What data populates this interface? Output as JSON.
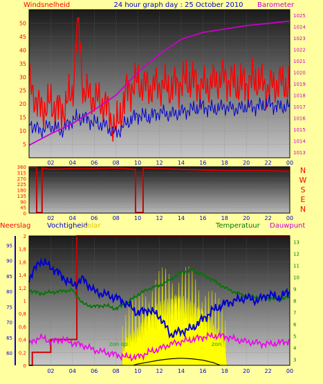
{
  "colors": {
    "page_bg": "#ffffa0",
    "wind": "#ff0000",
    "wind_avg": "#0000cc",
    "baro": "#cc00cc",
    "dir": "#cc0000",
    "temp": "#007700",
    "hum": "#0000cc",
    "dew": "#ee00ee",
    "rain": "#cc0000",
    "solar": "#ffff00",
    "sun": "#000000"
  },
  "header": {
    "title": "24 hour graph day : 25 October 2010",
    "left_label": "Windsnelheid",
    "right_label": "Barometer"
  },
  "panel3": {
    "rain_label": "Neerslag",
    "hum_label": "Vochtigheid",
    "solar_label": "Solar",
    "temp_label": "Temperatuur",
    "dew_label": "Dauwpunt",
    "sunrise_label": "zon op",
    "sunset_label": "zon"
  },
  "x_ticks": [
    "02",
    "04",
    "06",
    "08",
    "10",
    "12",
    "14",
    "16",
    "18",
    "20",
    "22",
    "00"
  ],
  "chart_data": [
    {
      "type": "line",
      "title": "24 hour graph day : 25 October 2010",
      "x_range": [
        0,
        24
      ],
      "y_left": {
        "label": "Windsnelheid",
        "ticks": [
          5,
          10,
          15,
          20,
          25,
          30,
          35,
          40,
          45,
          50
        ],
        "ylim": [
          0,
          55
        ]
      },
      "y_right": {
        "label": "Barometer",
        "ticks": [
          1013,
          1014,
          1015,
          1016,
          1017,
          1018,
          1019,
          1020,
          1021,
          1022,
          1023,
          1024,
          1025
        ],
        "ylim": [
          1012.5,
          1025.5
        ]
      },
      "series": [
        {
          "key": "gust",
          "axis": "left",
          "x": [
            0,
            1,
            2,
            3,
            4,
            4.5,
            5,
            6,
            7,
            8,
            9,
            10,
            11,
            12,
            13,
            14,
            15,
            16,
            17,
            18,
            19,
            20,
            21,
            22,
            23,
            24
          ],
          "values": [
            28,
            18,
            20,
            17,
            24,
            52,
            25,
            22,
            20,
            10,
            25,
            28,
            26,
            27,
            26,
            28,
            29,
            26,
            28,
            30,
            27,
            28,
            29,
            26,
            28,
            27
          ]
        },
        {
          "key": "avg",
          "axis": "left",
          "x": [
            0,
            1,
            2,
            3,
            4,
            5,
            6,
            7,
            8,
            9,
            10,
            11,
            12,
            13,
            14,
            15,
            16,
            17,
            18,
            19,
            20,
            21,
            22,
            23,
            24
          ],
          "values": [
            13,
            10,
            12,
            10,
            14,
            15,
            13,
            12,
            9,
            13,
            16,
            15,
            17,
            16,
            17,
            18,
            19,
            18,
            19,
            18,
            19,
            19,
            20,
            19,
            19
          ]
        },
        {
          "key": "baro",
          "axis": "right",
          "x": [
            0,
            2,
            4,
            6,
            8,
            10,
            12,
            14,
            16,
            18,
            20,
            22,
            24
          ],
          "values": [
            1013.6,
            1014.6,
            1015.5,
            1016.7,
            1018.0,
            1020.0,
            1021.6,
            1022.9,
            1023.5,
            1023.8,
            1024.1,
            1024.3,
            1024.5
          ]
        }
      ]
    },
    {
      "type": "line",
      "x_range": [
        0,
        24
      ],
      "y_left": {
        "ticks": [
          0,
          45,
          90,
          135,
          180,
          225,
          270,
          315,
          360
        ],
        "ylim": [
          0,
          360
        ]
      },
      "y_right": {
        "labels": [
          "N",
          "W",
          "S",
          "E",
          "N"
        ]
      },
      "series": [
        {
          "key": "dir",
          "x": [
            0,
            0.7,
            0.7,
            1.2,
            1.2,
            2,
            4,
            6,
            8,
            9.8,
            9.8,
            10.5,
            10.5,
            12,
            14,
            16,
            18,
            20,
            22,
            24
          ],
          "values": [
            355,
            355,
            5,
            5,
            350,
            340,
            345,
            345,
            350,
            340,
            5,
            5,
            350,
            345,
            340,
            335,
            330,
            330,
            330,
            325
          ]
        }
      ]
    },
    {
      "type": "line",
      "x_range": [
        0,
        24
      ],
      "y_rain": {
        "label": "Neerslag",
        "ticks": [
          0,
          0.2,
          0.4,
          0.6,
          0.8,
          1,
          1.2,
          1.4,
          1.6,
          1.8,
          2
        ],
        "ylim": [
          0,
          2
        ]
      },
      "y_hum": {
        "label": "Vochtigheid",
        "ticks": [
          60,
          65,
          70,
          75,
          80,
          85,
          90,
          95
        ],
        "ylim": [
          56,
          98
        ]
      },
      "y_temp": {
        "label": "Temperatuur",
        "ticks": [
          3,
          4,
          5,
          6,
          7,
          8,
          9,
          10,
          11,
          12,
          13
        ],
        "ylim": [
          2.5,
          13.5
        ]
      },
      "series": [
        {
          "key": "rain",
          "x": [
            0,
            0.3,
            0.3,
            2,
            2,
            4.4,
            4.4,
            24
          ],
          "values": [
            0,
            0,
            0.2,
            0.2,
            0.4,
            0.4,
            2,
            2
          ]
        },
        {
          "key": "hum",
          "x": [
            0,
            1,
            2,
            3,
            4,
            5,
            6,
            7,
            8,
            9,
            10,
            11,
            12,
            13,
            14,
            15,
            16,
            17,
            18,
            19,
            20,
            21,
            22,
            23,
            24
          ],
          "values": [
            84,
            90,
            88,
            85,
            82,
            84,
            80,
            79,
            78,
            76,
            73,
            74,
            72,
            66,
            67,
            68,
            71,
            74,
            76,
            77,
            78,
            77,
            79,
            78,
            80
          ]
        },
        {
          "key": "temp",
          "x": [
            0,
            1,
            2,
            3,
            4,
            5,
            6,
            7,
            8,
            9,
            10,
            11,
            12,
            13,
            14,
            15,
            16,
            17,
            18,
            19,
            20,
            21,
            22,
            23,
            24
          ],
          "values": [
            8.9,
            8.6,
            8.7,
            8.8,
            8.9,
            7.7,
            7.5,
            7.6,
            7.3,
            7.8,
            8.5,
            9.0,
            9.3,
            9.8,
            10.4,
            10.6,
            10.2,
            9.7,
            9.1,
            8.7,
            8.4,
            8.3,
            8.2,
            8.1,
            8.3
          ]
        },
        {
          "key": "dew",
          "x": [
            0,
            1,
            2,
            3,
            4,
            5,
            6,
            7,
            8,
            9,
            10,
            11,
            12,
            13,
            14,
            15,
            16,
            17,
            18,
            19,
            20,
            21,
            22,
            23,
            24
          ],
          "values": [
            4.3,
            4.9,
            4.5,
            4.7,
            4.4,
            4.2,
            3.8,
            3.6,
            3.4,
            3.2,
            3.2,
            3.6,
            3.9,
            4.3,
            4.5,
            4.7,
            4.9,
            5.0,
            5.0,
            4.7,
            4.5,
            4.4,
            4.3,
            4.4,
            4.6
          ]
        },
        {
          "key": "solar",
          "x": [
            8.6,
            9,
            10,
            11,
            12,
            13,
            14,
            15,
            16,
            17,
            17.5,
            18,
            18.2
          ],
          "values": [
            0.2,
            0.45,
            0.6,
            0.85,
            1.0,
            1.05,
            1.1,
            1.0,
            0.85,
            0.65,
            0.55,
            0.4,
            0
          ]
        },
        {
          "key": "sun",
          "x": [
            9.6,
            10,
            11,
            12,
            13,
            14,
            15,
            16,
            17,
            17.6
          ],
          "values": [
            0,
            0.02,
            0.05,
            0.08,
            0.1,
            0.11,
            0.1,
            0.08,
            0.04,
            0
          ]
        }
      ]
    }
  ]
}
